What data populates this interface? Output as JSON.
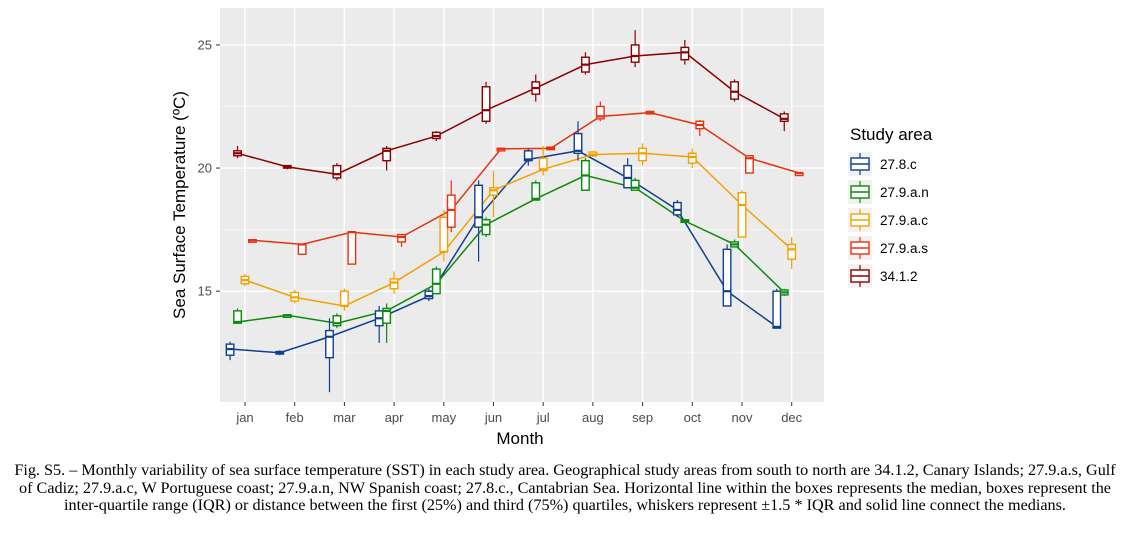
{
  "chart_data": {
    "type": "box",
    "title": "",
    "xlabel": "Month",
    "ylabel": "Sea Surface Temperature (ºC)",
    "ylim": [
      10.5,
      26.5
    ],
    "yticks": [
      15,
      20,
      25
    ],
    "ytick_labels": [
      "15",
      "20",
      "25"
    ],
    "categories": [
      "jan",
      "feb",
      "mar",
      "apr",
      "may",
      "jun",
      "jul",
      "aug",
      "sep",
      "oct",
      "nov",
      "dec"
    ],
    "grid": true,
    "legend": {
      "title": "Study area",
      "position": "right"
    },
    "series": [
      {
        "name": "27.8.c",
        "color": "#0f3f8f",
        "offset": -0.3,
        "boxes": [
          {
            "lo": 12.2,
            "q1": 12.4,
            "med": 12.65,
            "q3": 12.85,
            "hi": 12.95
          },
          {
            "lo": 12.4,
            "q1": 12.45,
            "med": 12.5,
            "q3": 12.55,
            "hi": 12.6
          },
          {
            "lo": 10.9,
            "q1": 12.3,
            "med": 13.15,
            "q3": 13.4,
            "hi": 13.9
          },
          {
            "lo": 12.9,
            "q1": 13.6,
            "med": 13.9,
            "q3": 14.2,
            "hi": 14.4
          },
          {
            "lo": 14.6,
            "q1": 14.7,
            "med": 14.8,
            "q3": 15.0,
            "hi": 15.1
          },
          {
            "lo": 16.2,
            "q1": 17.6,
            "med": 18.0,
            "q3": 19.3,
            "hi": 19.5
          },
          {
            "lo": 20.1,
            "q1": 20.3,
            "med": 20.35,
            "q3": 20.7,
            "hi": 20.8
          },
          {
            "lo": 20.3,
            "q1": 20.6,
            "med": 20.7,
            "q3": 21.4,
            "hi": 21.9
          },
          {
            "lo": 19.2,
            "q1": 19.2,
            "med": 19.6,
            "q3": 20.1,
            "hi": 20.4
          },
          {
            "lo": 18.0,
            "q1": 18.1,
            "med": 18.3,
            "q3": 18.6,
            "hi": 18.7
          },
          {
            "lo": 14.4,
            "q1": 14.4,
            "med": 15.0,
            "q3": 16.7,
            "hi": 16.9
          },
          {
            "lo": 13.5,
            "q1": 13.5,
            "med": 13.55,
            "q3": 15.0,
            "hi": 15.1
          }
        ]
      },
      {
        "name": "27.9.a.n",
        "color": "#0b8a0b",
        "offset": -0.15,
        "boxes": [
          {
            "lo": 13.7,
            "q1": 13.7,
            "med": 13.75,
            "q3": 14.2,
            "hi": 14.3
          },
          {
            "lo": 14.0,
            "q1": 14.0,
            "med": 14.02,
            "q3": 14.04,
            "hi": 14.06
          },
          {
            "lo": 13.5,
            "q1": 13.6,
            "med": 13.7,
            "q3": 14.0,
            "hi": 14.1
          },
          {
            "lo": 12.9,
            "q1": 13.7,
            "med": 14.2,
            "q3": 14.3,
            "hi": 14.5
          },
          {
            "lo": 14.9,
            "q1": 14.9,
            "med": 15.3,
            "q3": 15.9,
            "hi": 16.0
          },
          {
            "lo": 17.2,
            "q1": 17.3,
            "med": 17.7,
            "q3": 17.9,
            "hi": 18.0
          },
          {
            "lo": 18.7,
            "q1": 18.7,
            "med": 18.75,
            "q3": 19.4,
            "hi": 19.5
          },
          {
            "lo": 19.1,
            "q1": 19.1,
            "med": 19.7,
            "q3": 20.3,
            "hi": 20.4
          },
          {
            "lo": 19.1,
            "q1": 19.1,
            "med": 19.2,
            "q3": 19.5,
            "hi": 19.6
          },
          {
            "lo": 17.8,
            "q1": 17.8,
            "med": 17.85,
            "q3": 17.9,
            "hi": 17.9
          },
          {
            "lo": 16.8,
            "q1": 16.8,
            "med": 16.9,
            "q3": 17.0,
            "hi": 17.1
          },
          {
            "lo": 14.8,
            "q1": 14.85,
            "med": 14.95,
            "q3": 15.05,
            "hi": 15.1
          }
        ]
      },
      {
        "name": "27.9.a.c",
        "color": "#f5a000",
        "offset": 0,
        "boxes": [
          {
            "lo": 15.2,
            "q1": 15.3,
            "med": 15.45,
            "q3": 15.6,
            "hi": 15.7
          },
          {
            "lo": 14.5,
            "q1": 14.6,
            "med": 14.75,
            "q3": 14.95,
            "hi": 15.05
          },
          {
            "lo": 14.2,
            "q1": 14.4,
            "med": 14.4,
            "q3": 15.0,
            "hi": 15.1
          },
          {
            "lo": 14.9,
            "q1": 15.1,
            "med": 15.35,
            "q3": 15.5,
            "hi": 15.8
          },
          {
            "lo": 16.2,
            "q1": 16.6,
            "med": 16.6,
            "q3": 18.0,
            "hi": 18.3
          },
          {
            "lo": 18.0,
            "q1": 18.9,
            "med": 19.1,
            "q3": 19.2,
            "hi": 19.9
          },
          {
            "lo": 19.7,
            "q1": 19.9,
            "med": 19.95,
            "q3": 20.4,
            "hi": 20.9
          },
          {
            "lo": 20.45,
            "q1": 20.5,
            "med": 20.55,
            "q3": 20.65,
            "hi": 20.7
          },
          {
            "lo": 20.1,
            "q1": 20.3,
            "med": 20.6,
            "q3": 20.8,
            "hi": 21.0
          },
          {
            "lo": 20.0,
            "q1": 20.2,
            "med": 20.45,
            "q3": 20.6,
            "hi": 20.8
          },
          {
            "lo": 17.2,
            "q1": 17.2,
            "med": 18.5,
            "q3": 19.0,
            "hi": 19.1
          },
          {
            "lo": 15.9,
            "q1": 16.3,
            "med": 16.7,
            "q3": 16.9,
            "hi": 17.2
          }
        ]
      },
      {
        "name": "27.9.a.s",
        "color": "#e8320f",
        "offset": 0.15,
        "boxes": [
          {
            "lo": 17.05,
            "q1": 17.05,
            "med": 17.07,
            "q3": 17.09,
            "hi": 17.1
          },
          {
            "lo": 16.5,
            "q1": 16.5,
            "med": 16.9,
            "q3": 16.9,
            "hi": 16.9
          },
          {
            "lo": 16.1,
            "q1": 16.1,
            "med": 17.4,
            "q3": 17.4,
            "hi": 17.45
          },
          {
            "lo": 16.8,
            "q1": 17.0,
            "med": 17.2,
            "q3": 17.3,
            "hi": 17.3
          },
          {
            "lo": 17.4,
            "q1": 17.6,
            "med": 18.3,
            "q3": 18.9,
            "hi": 19.5
          },
          {
            "lo": 20.7,
            "q1": 20.75,
            "med": 20.78,
            "q3": 20.8,
            "hi": 20.8
          },
          {
            "lo": 20.75,
            "q1": 20.75,
            "med": 20.8,
            "q3": 20.85,
            "hi": 20.85
          },
          {
            "lo": 21.9,
            "q1": 22.0,
            "med": 22.1,
            "q3": 22.5,
            "hi": 22.7
          },
          {
            "lo": 22.2,
            "q1": 22.2,
            "med": 22.25,
            "q3": 22.3,
            "hi": 22.3
          },
          {
            "lo": 21.3,
            "q1": 21.6,
            "med": 21.75,
            "q3": 21.9,
            "hi": 21.95
          },
          {
            "lo": 19.8,
            "q1": 19.8,
            "med": 20.4,
            "q3": 20.5,
            "hi": 20.5
          },
          {
            "lo": 19.8,
            "q1": 19.8,
            "med": 19.8,
            "q3": 19.8,
            "hi": 19.8
          }
        ]
      },
      {
        "name": "34.1.2",
        "color": "#8b0000",
        "offset": -0.15,
        "boxes": [
          {
            "lo": 20.4,
            "q1": 20.5,
            "med": 20.6,
            "q3": 20.7,
            "hi": 20.9
          },
          {
            "lo": 19.95,
            "q1": 20.0,
            "med": 20.05,
            "q3": 20.1,
            "hi": 20.12
          },
          {
            "lo": 19.5,
            "q1": 19.6,
            "med": 19.75,
            "q3": 20.1,
            "hi": 20.2
          },
          {
            "lo": 19.9,
            "q1": 20.3,
            "med": 20.7,
            "q3": 20.8,
            "hi": 20.9
          },
          {
            "lo": 21.1,
            "q1": 21.2,
            "med": 21.3,
            "q3": 21.45,
            "hi": 21.5
          },
          {
            "lo": 21.8,
            "q1": 21.9,
            "med": 22.35,
            "q3": 23.3,
            "hi": 23.5
          },
          {
            "lo": 22.7,
            "q1": 23.0,
            "med": 23.25,
            "q3": 23.5,
            "hi": 23.8
          },
          {
            "lo": 23.8,
            "q1": 23.9,
            "med": 24.2,
            "q3": 24.5,
            "hi": 24.7
          },
          {
            "lo": 24.1,
            "q1": 24.3,
            "med": 24.55,
            "q3": 25.0,
            "hi": 25.6
          },
          {
            "lo": 24.2,
            "q1": 24.4,
            "med": 24.7,
            "q3": 24.9,
            "hi": 25.2
          },
          {
            "lo": 22.7,
            "q1": 22.8,
            "med": 23.1,
            "q3": 23.5,
            "hi": 23.6
          },
          {
            "lo": 21.5,
            "q1": 21.9,
            "med": 22.0,
            "q3": 22.2,
            "hi": 22.3
          }
        ]
      }
    ]
  },
  "caption": "Fig. S5. – Monthly variability of sea surface temperature (SST) in each study area. Geographical study areas from south to north are 34.1.2, Canary Islands; 27.9.a.s, Gulf of Cadiz; 27.9.a.c, W Portuguese coast; 27.9.a.n, NW Spanish coast; 27.8.c., Cantabrian Sea. Horizontal line within the boxes represents the median, boxes represent the inter-quartile range (IQR) or distance between the first (25%) and third (75%) quartiles, whiskers represent ±1.5 * IQR and solid line connect the medians."
}
